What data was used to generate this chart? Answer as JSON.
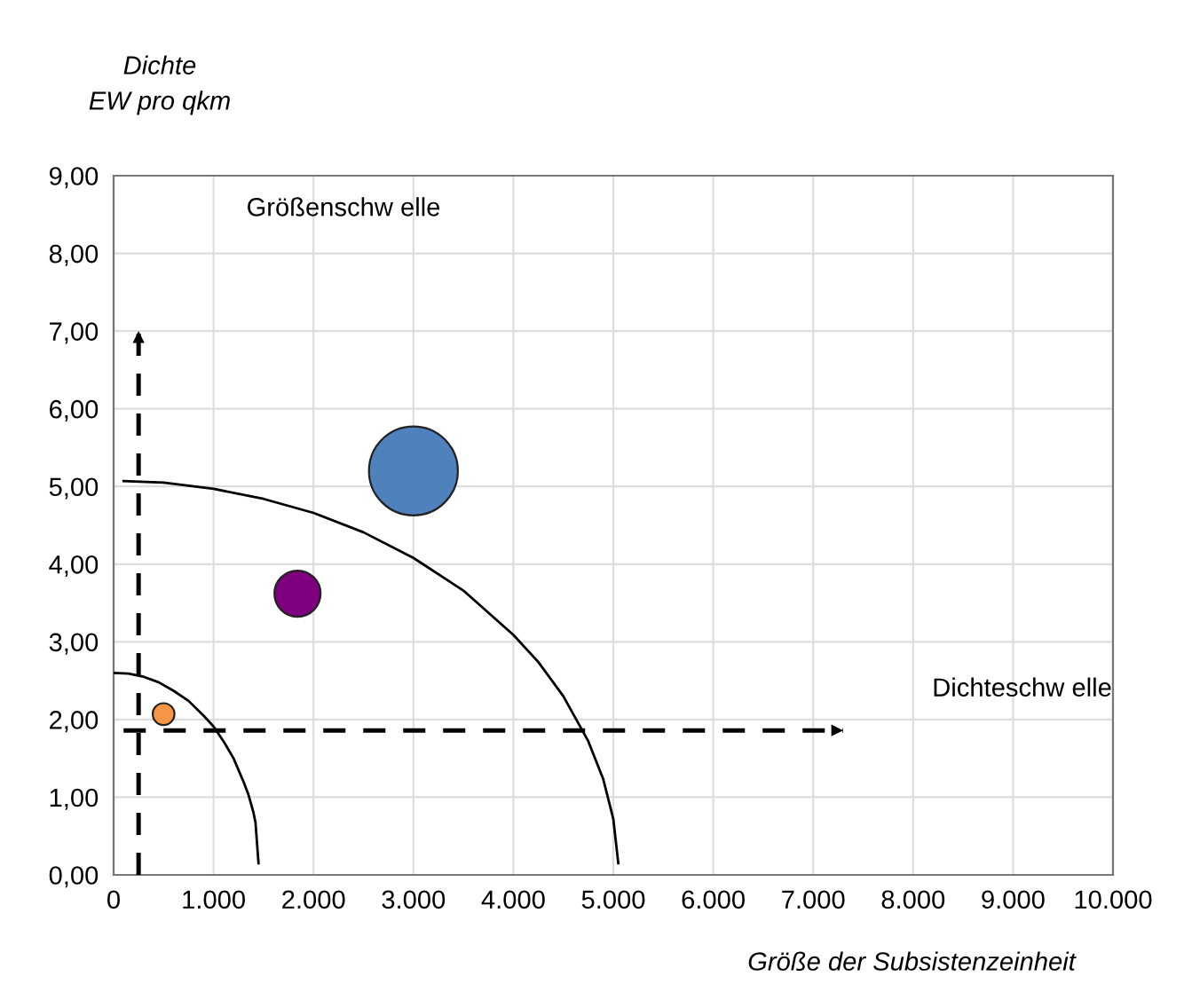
{
  "chart_data": {
    "type": "bubble",
    "xlabel": "Größe der Subsistenzeinheit",
    "ylabel": "Dichte\nEW pro qkm",
    "xlim": [
      0,
      10000
    ],
    "ylim": [
      0,
      9
    ],
    "xticks": [
      0,
      {
        "value": 1000,
        "label": "1.000"
      },
      {
        "value": 2000,
        "label": "2.000"
      },
      {
        "value": 3000,
        "label": "3.000"
      },
      {
        "value": 4000,
        "label": "4.000"
      },
      {
        "value": 5000,
        "label": "5.000"
      },
      {
        "value": 6000,
        "label": "6.000"
      },
      {
        "value": 7000,
        "label": "7.000"
      },
      {
        "value": 8000,
        "label": "8.000"
      },
      {
        "value": 9000,
        "label": "9.000"
      },
      {
        "value": 10000,
        "label": "10.000"
      }
    ],
    "yticks": [
      {
        "value": 0,
        "label": "0,00"
      },
      {
        "value": 1,
        "label": "1,00"
      },
      {
        "value": 2,
        "label": "2,00"
      },
      {
        "value": 3,
        "label": "3,00"
      },
      {
        "value": 4,
        "label": "4,00"
      },
      {
        "value": 5,
        "label": "5,00"
      },
      {
        "value": 6,
        "label": "6,00"
      },
      {
        "value": 7,
        "label": "7,00"
      },
      {
        "value": 8,
        "label": "8,00"
      },
      {
        "value": 9,
        "label": "9,00"
      }
    ],
    "grid": true,
    "legend": false,
    "series": [
      {
        "x": [
          3000,
          1840,
          500
        ],
        "values": [
          5.2,
          3.62,
          2.07
        ],
        "sizes": [
          1,
          0.27,
          0.06
        ],
        "colors": [
          "#4f81bd",
          "#7f007f",
          "#f79646"
        ]
      },
      {
        "type": "line",
        "color": "#000000",
        "line_style": "solid",
        "x": [
          100,
          500,
          1000,
          1500,
          2000,
          2500,
          3000,
          3500,
          4000,
          4250,
          4500,
          4750,
          4900,
          5000,
          5050
        ],
        "values": [
          5.07,
          5.05,
          4.97,
          4.84,
          4.66,
          4.41,
          4.08,
          3.66,
          3.09,
          2.74,
          2.3,
          1.72,
          1.23,
          0.72,
          0.15
        ]
      },
      {
        "type": "line",
        "color": "#000000",
        "line_style": "solid",
        "x": [
          0,
          150,
          300,
          450,
          600,
          750,
          900,
          1000,
          1100,
          1200,
          1300,
          1350,
          1400,
          1420,
          1450
        ],
        "values": [
          2.6,
          2.59,
          2.55,
          2.48,
          2.37,
          2.24,
          2.05,
          1.91,
          1.72,
          1.5,
          1.2,
          1.03,
          0.8,
          0.67,
          0.15
        ]
      },
      {
        "type": "line",
        "color": "#000000",
        "line_style": "dashed",
        "x": [
          250,
          250
        ],
        "values": [
          0,
          7
        ]
      },
      {
        "type": "line",
        "color": "#000000",
        "line_style": "dashed",
        "x": [
          100,
          7300
        ],
        "values": [
          1.86,
          1.86
        ]
      }
    ],
    "annotations": [
      "Größenschw elle",
      "Dichteschw elle"
    ]
  }
}
